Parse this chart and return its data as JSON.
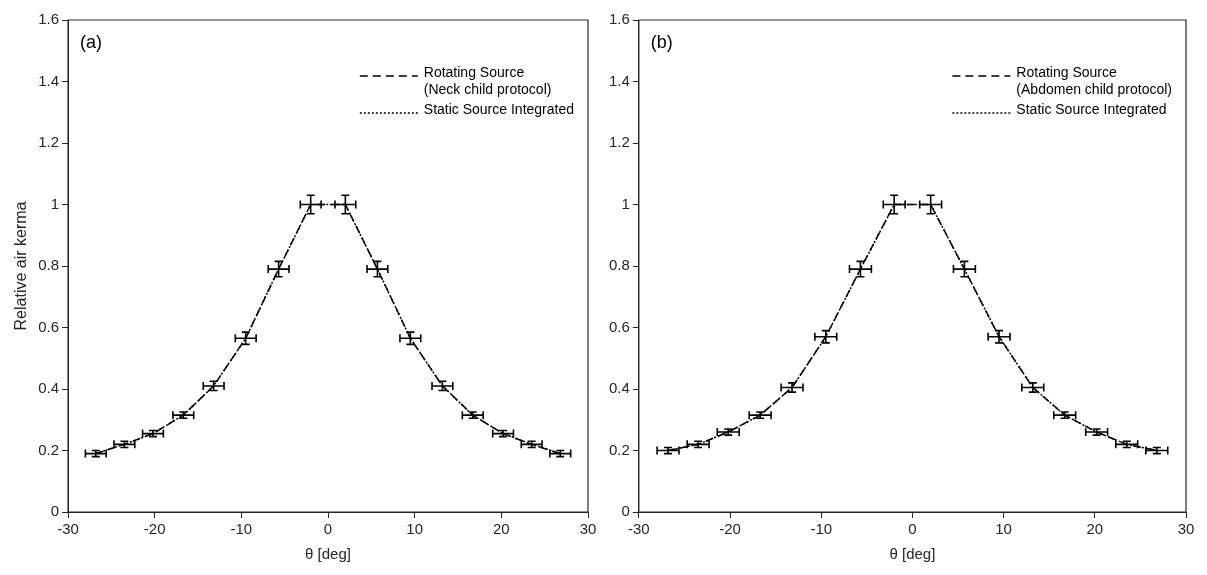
{
  "chart_data": [
    {
      "type": "line",
      "annotations": [
        "(a)"
      ],
      "xlabel": "θ [deg]",
      "ylabel": "Relative air kerma",
      "xlim": [
        -30,
        30
      ],
      "xticks": [
        -30,
        -20,
        -10,
        0,
        10,
        20,
        30
      ],
      "ylim": [
        0,
        1.6
      ],
      "yticks": [
        0,
        0.2,
        0.4,
        0.6,
        0.8,
        1,
        1.2,
        1.4,
        1.6
      ],
      "grid": false,
      "legend": "top right",
      "x": [
        -26.8,
        -23.5,
        -20.2,
        -16.7,
        -13.2,
        -9.5,
        -5.7,
        -2.0,
        2.0,
        5.7,
        9.5,
        13.2,
        16.7,
        20.2,
        23.5,
        26.8
      ],
      "series": [
        {
          "name": "Rotating Source (Neck child protocol)",
          "color": "#000000",
          "line_style": "dashed",
          "values": [
            0.19,
            0.22,
            0.255,
            0.315,
            0.41,
            0.565,
            0.79,
            1.0,
            1.0,
            0.79,
            0.565,
            0.41,
            0.315,
            0.255,
            0.22,
            0.19
          ],
          "errors": [
            0.01,
            0.01,
            0.01,
            0.01,
            0.015,
            0.02,
            0.025,
            0.03,
            0.03,
            0.025,
            0.02,
            0.015,
            0.01,
            0.01,
            0.01,
            0.01
          ],
          "xerrors": [
            1.2,
            1.2,
            1.2,
            1.2,
            1.2,
            1.2,
            1.2,
            1.2,
            1.2,
            1.2,
            1.2,
            1.2,
            1.2,
            1.2,
            1.2,
            1.2
          ]
        },
        {
          "name": "Static Source Integrated",
          "color": "#000000",
          "line_style": "dotted",
          "values": [
            0.19,
            0.22,
            0.255,
            0.315,
            0.41,
            0.565,
            0.79,
            1.0,
            1.0,
            0.79,
            0.565,
            0.41,
            0.315,
            0.255,
            0.22,
            0.19
          ]
        }
      ]
    },
    {
      "type": "line",
      "annotations": [
        "(b)"
      ],
      "xlabel": "θ [deg]",
      "xlim": [
        -30,
        30
      ],
      "xticks": [
        -30,
        -20,
        -10,
        0,
        10,
        20,
        30
      ],
      "ylim": [
        0,
        1.6
      ],
      "yticks": [
        0,
        0.2,
        0.4,
        0.6,
        0.8,
        1,
        1.2,
        1.4,
        1.6
      ],
      "grid": false,
      "legend": "top right",
      "x": [
        -26.8,
        -23.5,
        -20.2,
        -16.7,
        -13.2,
        -9.5,
        -5.7,
        -2.0,
        2.0,
        5.7,
        9.5,
        13.2,
        16.7,
        20.2,
        23.5,
        26.8
      ],
      "series": [
        {
          "name": "Rotating Source (Abdomen child protocol)",
          "color": "#000000",
          "line_style": "dashed",
          "values": [
            0.2,
            0.22,
            0.26,
            0.315,
            0.405,
            0.57,
            0.79,
            1.0,
            1.0,
            0.79,
            0.57,
            0.405,
            0.315,
            0.26,
            0.22,
            0.2
          ],
          "errors": [
            0.01,
            0.01,
            0.01,
            0.01,
            0.015,
            0.02,
            0.025,
            0.03,
            0.03,
            0.025,
            0.02,
            0.015,
            0.01,
            0.01,
            0.01,
            0.01
          ],
          "xerrors": [
            1.2,
            1.2,
            1.2,
            1.2,
            1.2,
            1.2,
            1.2,
            1.2,
            1.2,
            1.2,
            1.2,
            1.2,
            1.2,
            1.2,
            1.2,
            1.2
          ]
        },
        {
          "name": "Static Source Integrated",
          "color": "#000000",
          "line_style": "dotted",
          "values": [
            0.2,
            0.22,
            0.26,
            0.315,
            0.405,
            0.57,
            0.79,
            1.0,
            1.0,
            0.79,
            0.57,
            0.405,
            0.315,
            0.26,
            0.22,
            0.2
          ]
        }
      ]
    }
  ]
}
